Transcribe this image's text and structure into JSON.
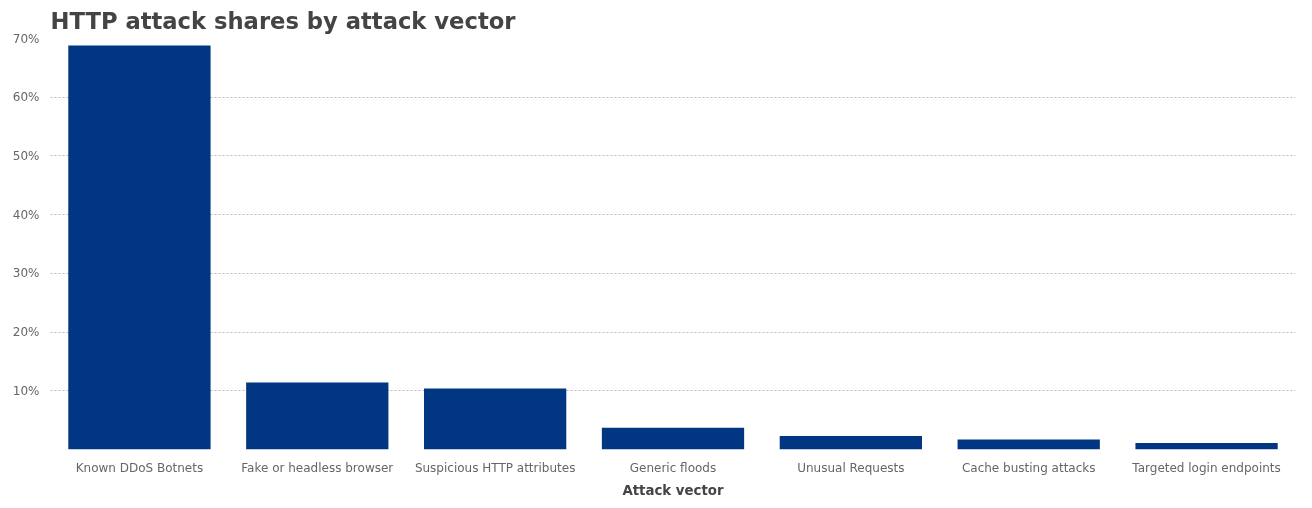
{
  "chart_data": {
    "type": "bar",
    "title": "HTTP attack shares by attack vector",
    "xlabel": "Attack vector",
    "categories": [
      "Known DDoS Botnets",
      "Fake or headless browser",
      "Suspicious HTTP attributes",
      "Generic floods",
      "Unusual Requests",
      "Cache busting attacks",
      "Targeted login endpoints"
    ],
    "values": [
      68.8,
      11.4,
      10.4,
      3.7,
      2.3,
      1.7,
      1.1
    ],
    "color": "#003682",
    "ylim": [
      0,
      70
    ],
    "yticks": [
      {
        "value": 10,
        "label": "10%"
      },
      {
        "value": 20,
        "label": "20%"
      },
      {
        "value": 30,
        "label": "30%"
      },
      {
        "value": 40,
        "label": "40%"
      },
      {
        "value": 50,
        "label": "50%"
      },
      {
        "value": 60,
        "label": "60%"
      },
      {
        "value": 70,
        "label": "70%"
      }
    ],
    "grid": "y"
  }
}
